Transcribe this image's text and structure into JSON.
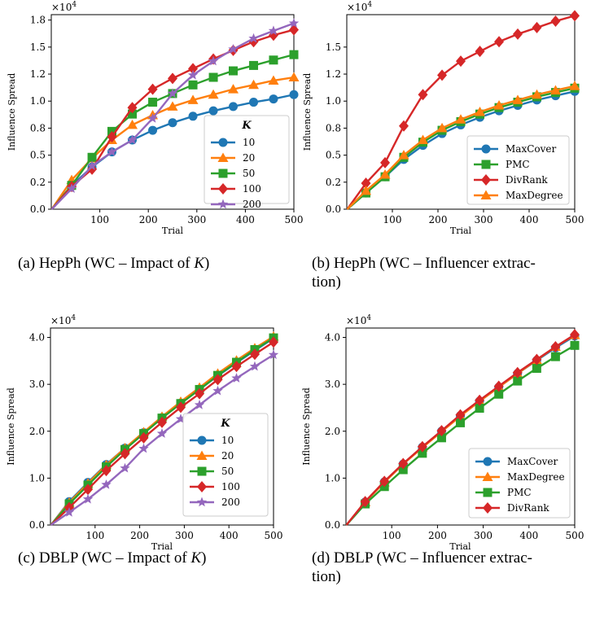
{
  "colors": {
    "blue": "#1f77b4",
    "orange": "#ff7f0e",
    "green": "#2ca02c",
    "red": "#d62728",
    "purple": "#9467bd"
  },
  "captions": {
    "a": "(a) HepPh (WC – Impact of K)",
    "b": "(b) HepPh (WC – Influencer extrac-tion)",
    "c": "(c) DBLP (WC – Impact of K)",
    "d": "(d) DBLP (WC – Influencer extrac-tion)"
  },
  "caption_parts": {
    "a": {
      "label": "(a) HepPh (WC – Impact of ",
      "italic": "K",
      "close": ")"
    },
    "b": {
      "line1": "(b) HepPh (WC – Influencer extrac-",
      "line2": "tion)"
    },
    "c": {
      "label": "(c) DBLP (WC – Impact of ",
      "italic": "K",
      "close": ")"
    },
    "d": {
      "line1": "(d) DBLP (WC – Influencer extrac-",
      "line2": "tion)"
    }
  },
  "chart_data": [
    {
      "id": "a",
      "type": "line",
      "xlabel": "Trial",
      "ylabel": "Influence Spread",
      "exponent_label": "×10^4",
      "xlim": [
        0,
        500
      ],
      "ylim": [
        0,
        1.8
      ],
      "xticks": [
        "100",
        "200",
        "300",
        "400",
        "500"
      ],
      "xtick_values": [
        100,
        200,
        300,
        400,
        500
      ],
      "yticks": [
        "0.0",
        "0.2",
        "0.5",
        "0.8",
        "1.0",
        "1.2",
        "1.5",
        "1.8"
      ],
      "ytick_values": [
        0,
        0.25,
        0.5,
        0.75,
        1.0,
        1.25,
        1.5,
        1.75
      ],
      "legend_title": "K",
      "legend_position": "lower right",
      "x": [
        1,
        42,
        84,
        125,
        167,
        209,
        250,
        292,
        334,
        375,
        417,
        458,
        500
      ],
      "series": [
        {
          "name": "10",
          "color": "blue",
          "marker": "circle",
          "values": [
            0.0,
            0.22,
            0.39,
            0.53,
            0.64,
            0.73,
            0.8,
            0.86,
            0.91,
            0.95,
            0.99,
            1.02,
            1.06
          ]
        },
        {
          "name": "20",
          "color": "orange",
          "marker": "triangle",
          "values": [
            0.0,
            0.27,
            0.47,
            0.64,
            0.78,
            0.87,
            0.95,
            1.01,
            1.06,
            1.11,
            1.15,
            1.19,
            1.22
          ]
        },
        {
          "name": "50",
          "color": "green",
          "marker": "square",
          "values": [
            0.0,
            0.22,
            0.48,
            0.72,
            0.88,
            0.99,
            1.07,
            1.15,
            1.22,
            1.28,
            1.33,
            1.38,
            1.43
          ]
        },
        {
          "name": "100",
          "color": "red",
          "marker": "diamond",
          "values": [
            0.0,
            0.21,
            0.37,
            0.67,
            0.94,
            1.11,
            1.21,
            1.3,
            1.39,
            1.47,
            1.55,
            1.61,
            1.66
          ]
        },
        {
          "name": "200",
          "color": "purple",
          "marker": "star",
          "values": [
            0.0,
            0.19,
            0.4,
            0.53,
            0.64,
            0.84,
            1.07,
            1.24,
            1.37,
            1.48,
            1.58,
            1.65,
            1.72
          ]
        }
      ]
    },
    {
      "id": "b",
      "type": "line",
      "xlabel": "Trial",
      "ylabel": "Influence Spread",
      "exponent_label": "×10^4",
      "xlim": [
        0,
        500
      ],
      "ylim": [
        0,
        1.8
      ],
      "xticks": [
        "100",
        "200",
        "300",
        "400",
        "500"
      ],
      "xtick_values": [
        100,
        200,
        300,
        400,
        500
      ],
      "yticks": [
        "0.0",
        "0.2",
        "0.5",
        "0.8",
        "1.0",
        "1.2",
        "1.5"
      ],
      "ytick_values": [
        0,
        0.25,
        0.5,
        0.75,
        1.0,
        1.25,
        1.5
      ],
      "legend_title": "",
      "legend_position": "lower right",
      "x": [
        1,
        42,
        84,
        125,
        167,
        209,
        250,
        292,
        334,
        375,
        417,
        458,
        500
      ],
      "series": [
        {
          "name": "MaxCover",
          "color": "blue",
          "marker": "circle",
          "values": [
            0.0,
            0.15,
            0.3,
            0.46,
            0.59,
            0.7,
            0.78,
            0.85,
            0.91,
            0.96,
            1.01,
            1.05,
            1.09
          ]
        },
        {
          "name": "PMC",
          "color": "green",
          "marker": "square",
          "values": [
            0.0,
            0.15,
            0.3,
            0.48,
            0.62,
            0.73,
            0.81,
            0.88,
            0.94,
            0.99,
            1.04,
            1.08,
            1.12
          ]
        },
        {
          "name": "DivRank",
          "color": "red",
          "marker": "diamond",
          "values": [
            0.0,
            0.24,
            0.43,
            0.77,
            1.06,
            1.24,
            1.37,
            1.46,
            1.55,
            1.62,
            1.68,
            1.74,
            1.79
          ]
        },
        {
          "name": "MaxDegree",
          "color": "orange",
          "marker": "triangle",
          "values": [
            0.0,
            0.17,
            0.32,
            0.5,
            0.64,
            0.75,
            0.83,
            0.9,
            0.96,
            1.01,
            1.06,
            1.1,
            1.14
          ]
        }
      ]
    },
    {
      "id": "c",
      "type": "line",
      "xlabel": "Trial",
      "ylabel": "Influence Spread",
      "exponent_label": "×10^4",
      "xlim": [
        0,
        500
      ],
      "ylim": [
        0,
        4.2
      ],
      "xticks": [
        "100",
        "200",
        "300",
        "400",
        "500"
      ],
      "xtick_values": [
        100,
        200,
        300,
        400,
        500
      ],
      "yticks": [
        "0.0",
        "1.0",
        "2.0",
        "3.0",
        "4.0"
      ],
      "ytick_values": [
        0,
        1.0,
        2.0,
        3.0,
        4.0
      ],
      "legend_title": "K",
      "legend_position": "lower right",
      "x": [
        1,
        42,
        84,
        125,
        167,
        209,
        250,
        292,
        334,
        375,
        417,
        458,
        500
      ],
      "series": [
        {
          "name": "10",
          "color": "blue",
          "marker": "circle",
          "values": [
            0.0,
            0.5,
            0.91,
            1.29,
            1.64,
            1.97,
            2.29,
            2.6,
            2.89,
            3.18,
            3.46,
            3.72,
            3.98
          ]
        },
        {
          "name": "20",
          "color": "orange",
          "marker": "triangle",
          "values": [
            0.0,
            0.48,
            0.89,
            1.28,
            1.64,
            1.98,
            2.31,
            2.63,
            2.93,
            3.23,
            3.51,
            3.77,
            4.02
          ]
        },
        {
          "name": "50",
          "color": "green",
          "marker": "square",
          "values": [
            0.0,
            0.45,
            0.85,
            1.24,
            1.61,
            1.95,
            2.28,
            2.59,
            2.89,
            3.19,
            3.47,
            3.74,
            3.99
          ]
        },
        {
          "name": "100",
          "color": "red",
          "marker": "diamond",
          "values": [
            0.0,
            0.37,
            0.76,
            1.16,
            1.52,
            1.86,
            2.19,
            2.51,
            2.8,
            3.1,
            3.38,
            3.64,
            3.9
          ]
        },
        {
          "name": "200",
          "color": "purple",
          "marker": "star",
          "values": [
            0.0,
            0.27,
            0.55,
            0.86,
            1.21,
            1.63,
            1.95,
            2.26,
            2.56,
            2.86,
            3.13,
            3.38,
            3.63
          ]
        }
      ]
    },
    {
      "id": "d",
      "type": "line",
      "xlabel": "Trial",
      "ylabel": "Influence Spread",
      "exponent_label": "×10^4",
      "xlim": [
        0,
        500
      ],
      "ylim": [
        0,
        4.2
      ],
      "xticks": [
        "100",
        "200",
        "300",
        "400",
        "500"
      ],
      "xtick_values": [
        100,
        200,
        300,
        400,
        500
      ],
      "yticks": [
        "0.0",
        "1.0",
        "2.0",
        "3.0",
        "4.0"
      ],
      "ytick_values": [
        0,
        1.0,
        2.0,
        3.0,
        4.0
      ],
      "legend_title": "",
      "legend_position": "lower right",
      "x": [
        1,
        42,
        84,
        125,
        167,
        209,
        250,
        292,
        334,
        375,
        417,
        458,
        500
      ],
      "series": [
        {
          "name": "MaxCover",
          "color": "blue",
          "marker": "circle",
          "values": [
            0.0,
            0.49,
            0.92,
            1.3,
            1.66,
            2.0,
            2.33,
            2.64,
            2.94,
            3.23,
            3.51,
            3.78,
            4.03
          ]
        },
        {
          "name": "MaxDegree",
          "color": "orange",
          "marker": "triangle",
          "values": [
            0.0,
            0.49,
            0.91,
            1.3,
            1.65,
            1.99,
            2.32,
            2.64,
            2.94,
            3.23,
            3.52,
            3.8,
            4.05
          ]
        },
        {
          "name": "PMC",
          "color": "green",
          "marker": "square",
          "values": [
            0.0,
            0.45,
            0.82,
            1.18,
            1.53,
            1.86,
            2.18,
            2.49,
            2.79,
            3.07,
            3.34,
            3.59,
            3.83
          ]
        },
        {
          "name": "DivRank",
          "color": "red",
          "marker": "diamond",
          "values": [
            0.0,
            0.5,
            0.93,
            1.31,
            1.67,
            2.01,
            2.35,
            2.66,
            2.96,
            3.25,
            3.53,
            3.8,
            4.06
          ]
        }
      ]
    }
  ]
}
